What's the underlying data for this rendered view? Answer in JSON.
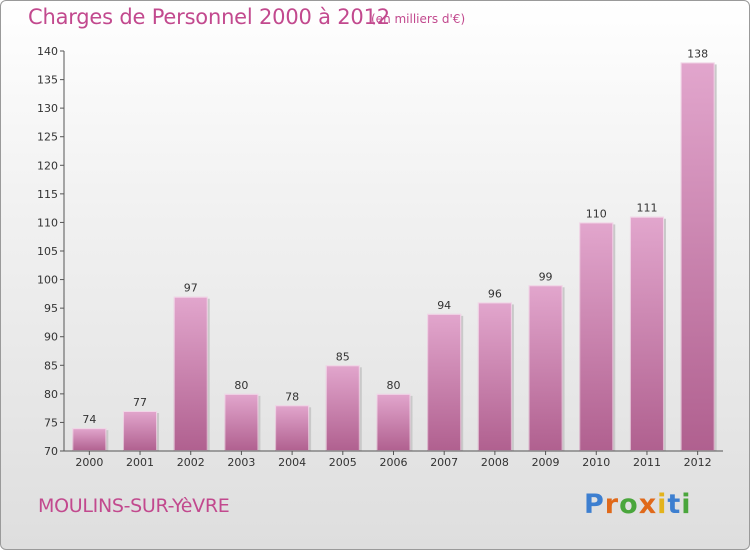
{
  "header": {
    "title": "Charges de Personnel 2000 à 2012",
    "subtitle": "(en milliers d'€)"
  },
  "footer": {
    "commune": "MOULINS-SUR-YèVRE",
    "logo": "Proxiti"
  },
  "colors": {
    "title": "#c2498e",
    "bar_top": "#e2a6cd",
    "bar_bottom": "#b0608f"
  },
  "chart_data": {
    "type": "bar",
    "categories": [
      "2000",
      "2001",
      "2002",
      "2003",
      "2004",
      "2005",
      "2006",
      "2007",
      "2008",
      "2009",
      "2010",
      "2011",
      "2012"
    ],
    "values": [
      74,
      77,
      97,
      80,
      78,
      85,
      80,
      94,
      96,
      99,
      110,
      111,
      138
    ],
    "ylim": [
      70,
      140
    ],
    "yticks": [
      70,
      75,
      80,
      85,
      90,
      95,
      100,
      105,
      110,
      115,
      120,
      125,
      130,
      135,
      140
    ],
    "grid": false,
    "legend": "none"
  }
}
